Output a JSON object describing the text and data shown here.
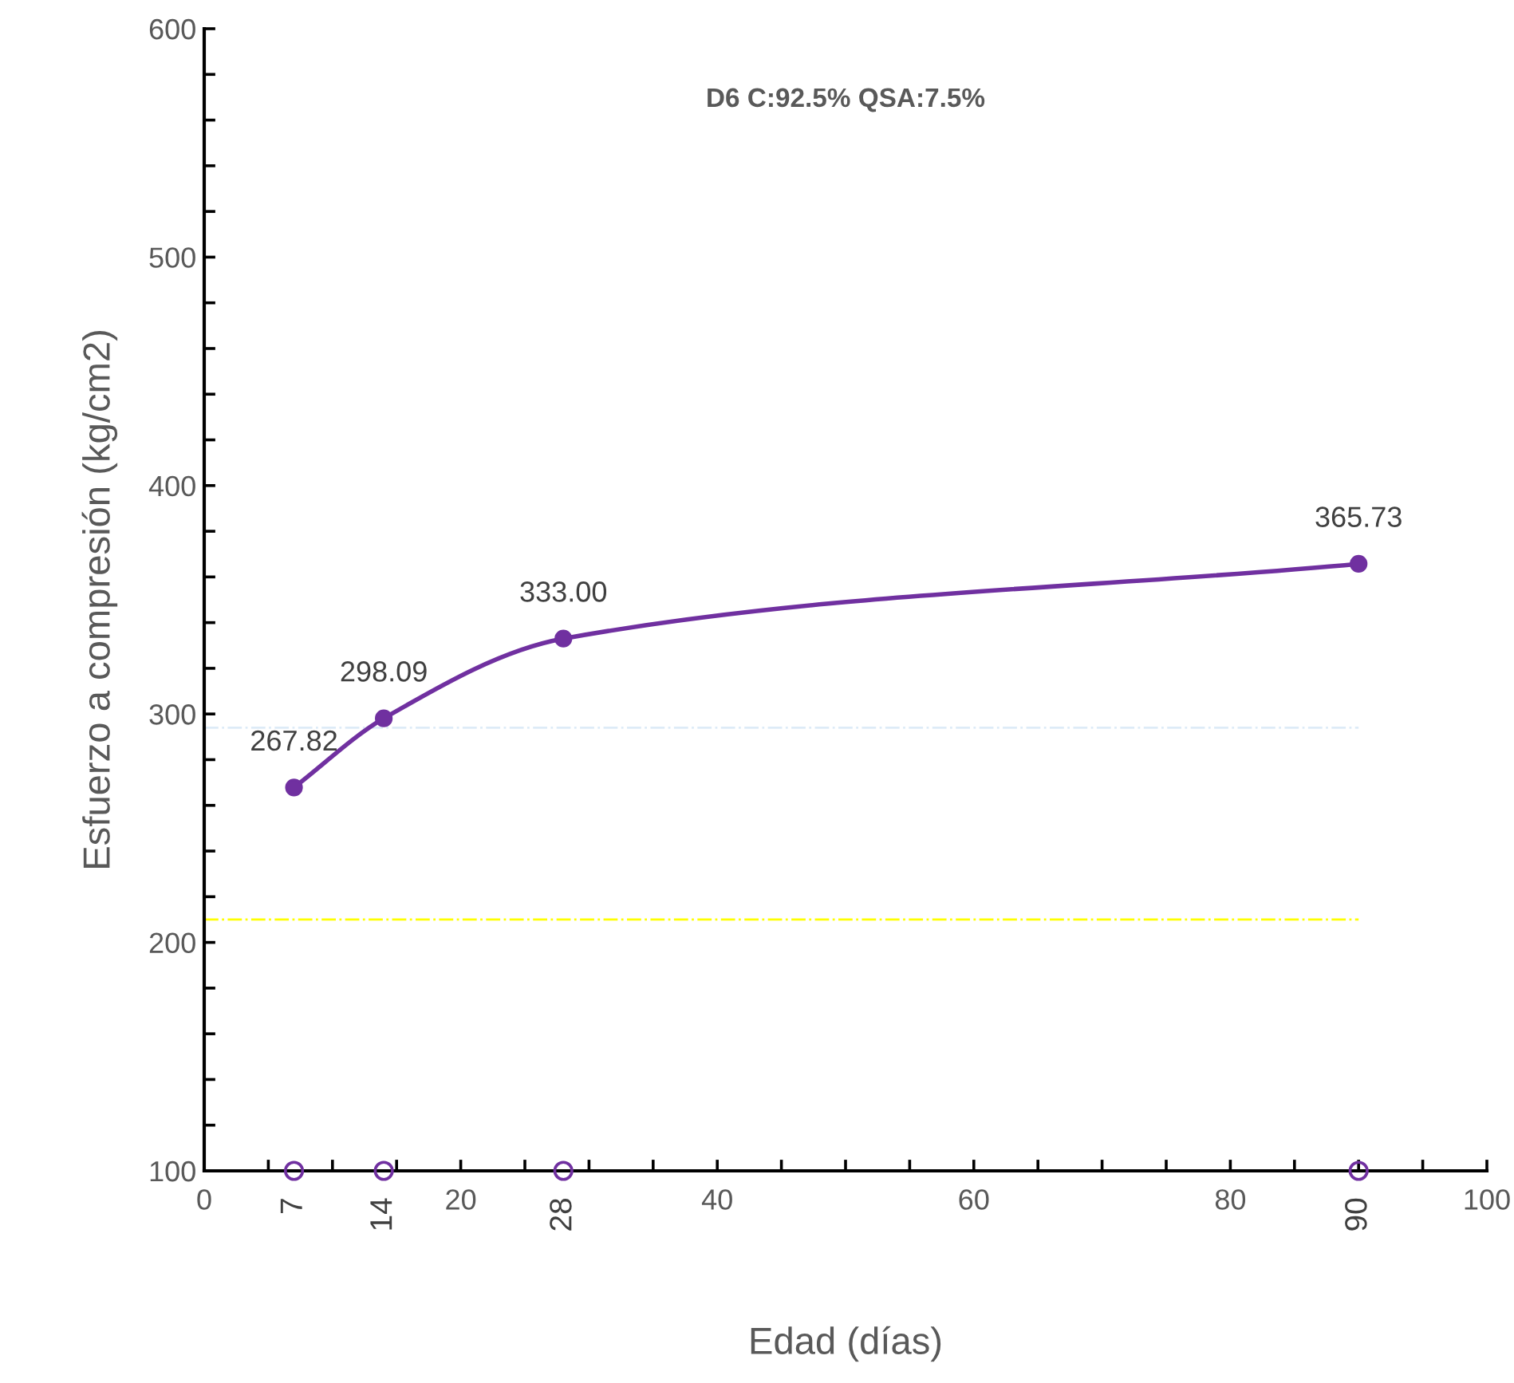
{
  "chart_data": {
    "type": "line",
    "title": "D6 C:92.5% QSA:7.5%",
    "xlabel": "Edad (días)",
    "ylabel": "Esfuerzo a compresión (kg/cm2)",
    "series": [
      {
        "color": "#7030a0",
        "x": [
          7,
          14,
          28,
          90
        ],
        "values": [
          267.82,
          298.09,
          333.0,
          365.73
        ],
        "marker": "circle",
        "value_labels": [
          "267.82",
          "298.09",
          "333.00",
          "365.73"
        ]
      },
      {
        "type": "scatter",
        "color": "#7030a0",
        "x": [
          7,
          14,
          28,
          90
        ],
        "values": [
          100,
          100,
          100,
          100
        ],
        "marker": "circle"
      }
    ],
    "x2lim": [
      0,
      100
    ],
    "x2ticks": [
      7,
      14,
      28,
      90
    ],
    "xlim": [
      0,
      100
    ],
    "ylim": [
      100,
      600
    ],
    "xticks": [
      0,
      {
        "value": 5,
        "label": null
      },
      {
        "value": 10,
        "label": null
      },
      {
        "value": 15,
        "label": null
      },
      20,
      {
        "value": 25,
        "label": null
      },
      {
        "value": 30,
        "label": null
      },
      {
        "value": 35,
        "label": null
      },
      40,
      {
        "value": 45,
        "label": null
      },
      {
        "value": 50,
        "label": null
      },
      {
        "value": 55,
        "label": null
      },
      60,
      {
        "value": 65,
        "label": null
      },
      {
        "value": 70,
        "label": null
      },
      {
        "value": 75,
        "label": null
      },
      80,
      {
        "value": 85,
        "label": null
      },
      {
        "value": 90,
        "label": null
      },
      {
        "value": 95,
        "label": null
      },
      100
    ],
    "yticks": [
      100,
      {
        "value": 120,
        "label": null
      },
      {
        "value": 140,
        "label": null
      },
      {
        "value": 160,
        "label": null
      },
      {
        "value": 180,
        "label": null
      },
      200,
      {
        "value": 220,
        "label": null
      },
      {
        "value": 240,
        "label": null
      },
      {
        "value": 260,
        "label": null
      },
      {
        "value": 280,
        "label": null
      },
      300,
      {
        "value": 320,
        "label": null
      },
      {
        "value": 340,
        "label": null
      },
      {
        "value": 360,
        "label": null
      },
      {
        "value": 380,
        "label": null
      },
      400,
      {
        "value": 420,
        "label": null
      },
      {
        "value": 440,
        "label": null
      },
      {
        "value": 460,
        "label": null
      },
      {
        "value": 480,
        "label": null
      },
      500,
      {
        "value": 520,
        "label": null
      },
      {
        "value": 540,
        "label": null
      },
      {
        "value": 560,
        "label": null
      },
      {
        "value": 580,
        "label": null
      },
      600
    ],
    "ref_lines": [
      {
        "axis": "y",
        "value": 294,
        "color": "#ddebf7",
        "line_style": "dashdot"
      },
      {
        "axis": "y",
        "value": 210,
        "color": "#ffff00",
        "line_style": "dashdot"
      }
    ],
    "grid": false,
    "legend": false
  }
}
